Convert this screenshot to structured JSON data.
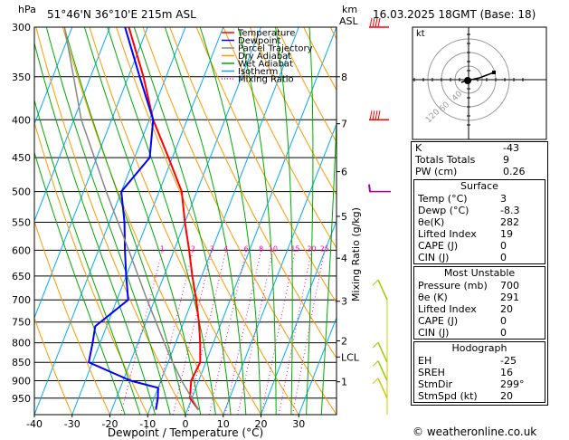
{
  "header": {
    "hpa_label": "hPa",
    "location": "51°46'N  36°10'E  215m  ASL",
    "km_label": "km",
    "asl_label": "ASL",
    "datetime": "16.03.2025  18GMT  (Base: 18)"
  },
  "chart_data": {
    "type": "skew-t",
    "title": "51°46'N  36°10'E  215m  ASL",
    "xlabel": "Dewpoint / Temperature (°C)",
    "ylabel": "hPa",
    "xlim": [
      -40,
      40
    ],
    "ylim": [
      1000,
      300
    ],
    "x_ticks": [
      -40,
      -30,
      -20,
      -10,
      0,
      10,
      20,
      30
    ],
    "pressure_ticks": [
      300,
      350,
      400,
      450,
      500,
      550,
      600,
      650,
      700,
      750,
      800,
      850,
      900,
      950
    ],
    "km_ticks": [
      {
        "label": "8",
        "p": 350
      },
      {
        "label": "7",
        "p": 405
      },
      {
        "label": "6",
        "p": 470
      },
      {
        "label": "5",
        "p": 540
      },
      {
        "label": "4",
        "p": 615
      },
      {
        "label": "3",
        "p": 703
      },
      {
        "label": "2",
        "p": 795
      },
      {
        "label": "LCL",
        "p": 836
      },
      {
        "label": "1",
        "p": 903
      }
    ],
    "mixing_ratio_axis_label": "Mixing Ratio (g/kg)",
    "mixing_ratio_labels": [
      "1",
      "2",
      "3",
      "4",
      "6",
      "8",
      "10",
      "15",
      "20",
      "25"
    ],
    "legend": [
      {
        "name": "Temperature",
        "color": "#ff0000"
      },
      {
        "name": "Dewpoint",
        "color": "#0000ff"
      },
      {
        "name": "Parcel Trajectory",
        "color": "#888888"
      },
      {
        "name": "Dry Adiabat",
        "color": "#ff9900"
      },
      {
        "name": "Wet Adiabat",
        "color": "#00aa00"
      },
      {
        "name": "Isotherm",
        "color": "#00aaff"
      },
      {
        "name": "Mixing Ratio",
        "color": "#ff00aa"
      }
    ],
    "series": [
      {
        "name": "Temperature",
        "color": "#ff0000",
        "points": [
          [
            985,
            3
          ],
          [
            950,
            -0.5
          ],
          [
            900,
            -2
          ],
          [
            850,
            -1.5
          ],
          [
            800,
            -3.5
          ],
          [
            750,
            -6
          ],
          [
            700,
            -9
          ],
          [
            650,
            -12.5
          ],
          [
            600,
            -16
          ],
          [
            550,
            -20
          ],
          [
            500,
            -24
          ],
          [
            450,
            -31
          ],
          [
            400,
            -39
          ],
          [
            350,
            -46
          ],
          [
            300,
            -55
          ]
        ]
      },
      {
        "name": "Dewpoint",
        "color": "#0000ff",
        "points": [
          [
            985,
            -8.3
          ],
          [
            950,
            -9
          ],
          [
            920,
            -10
          ],
          [
            900,
            -18
          ],
          [
            850,
            -31
          ],
          [
            800,
            -32
          ],
          [
            760,
            -33
          ],
          [
            700,
            -27
          ],
          [
            650,
            -30
          ],
          [
            600,
            -33
          ],
          [
            550,
            -36
          ],
          [
            500,
            -40
          ],
          [
            450,
            -36
          ],
          [
            400,
            -39
          ],
          [
            350,
            -47
          ],
          [
            300,
            -56
          ]
        ]
      },
      {
        "name": "Parcel Trajectory",
        "color": "#888888",
        "points": [
          [
            985,
            3
          ],
          [
            900,
            -4.5
          ],
          [
            836,
            -10
          ],
          [
            800,
            -13
          ],
          [
            700,
            -22
          ],
          [
            600,
            -32
          ],
          [
            500,
            -44
          ],
          [
            400,
            -58
          ],
          [
            300,
            -72
          ]
        ]
      }
    ],
    "wind_barbs": [
      {
        "p": 300,
        "color": "#ff0000"
      },
      {
        "p": 400,
        "color": "#ff0000"
      },
      {
        "p": 500,
        "color": "#aa00aa"
      },
      {
        "p": 700,
        "color": "#99cc00"
      },
      {
        "p": 850,
        "color": "#99cc00"
      },
      {
        "p": 900,
        "color": "#99cc00"
      },
      {
        "p": 950,
        "color": "#cccc00"
      }
    ]
  },
  "hodograph": {
    "unit": "kt",
    "ring_labels": [
      "40",
      "60",
      "120"
    ]
  },
  "indices": {
    "rows": [
      {
        "label": "K",
        "value": "-43"
      },
      {
        "label": "Totals Totals",
        "value": "9"
      },
      {
        "label": "PW (cm)",
        "value": "0.26"
      }
    ]
  },
  "surface": {
    "title": "Surface",
    "rows": [
      {
        "label": "Temp (°C)",
        "value": "3"
      },
      {
        "label": "Dewp (°C)",
        "value": "-8.3"
      },
      {
        "label": "θe(K)",
        "value": "282"
      },
      {
        "label": "Lifted Index",
        "value": "19"
      },
      {
        "label": "CAPE (J)",
        "value": "0"
      },
      {
        "label": "CIN (J)",
        "value": "0"
      }
    ]
  },
  "unstable": {
    "title": "Most Unstable",
    "rows": [
      {
        "label": "Pressure (mb)",
        "value": "700"
      },
      {
        "label": "θe (K)",
        "value": "291"
      },
      {
        "label": "Lifted Index",
        "value": "20"
      },
      {
        "label": "CAPE (J)",
        "value": "0"
      },
      {
        "label": "CIN (J)",
        "value": "0"
      }
    ]
  },
  "hodo_table": {
    "title": "Hodograph",
    "rows": [
      {
        "label": "EH",
        "value": "-25"
      },
      {
        "label": "SREH",
        "value": "16"
      },
      {
        "label": "StmDir",
        "value": "299°"
      },
      {
        "label": "StmSpd (kt)",
        "value": "20"
      }
    ]
  },
  "credit": "© weatheronline.co.uk"
}
